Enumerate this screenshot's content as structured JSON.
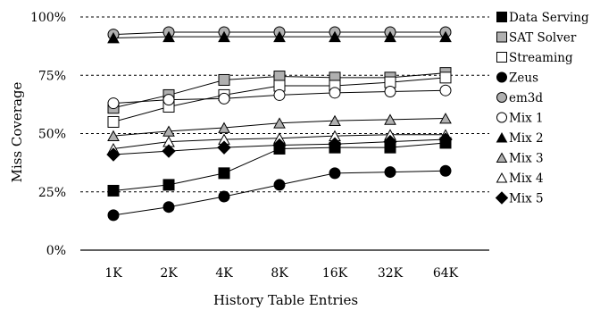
{
  "chart_data": {
    "type": "line",
    "title": "",
    "xlabel": "History Table Entries",
    "ylabel": "Miss Coverage",
    "categories": [
      "1K",
      "2K",
      "4K",
      "8K",
      "16K",
      "32K",
      "64K"
    ],
    "ylim": [
      0,
      100
    ],
    "yticks": [
      "0%",
      "25%",
      "50%",
      "75%",
      "100%"
    ],
    "ytick_values": [
      0,
      25,
      50,
      75,
      100
    ],
    "grid": "horizontal dashed at 25%, 50%, 75%, 100%",
    "legend_position": "right",
    "series": [
      {
        "name": "Data Serving",
        "marker": "square",
        "fill": "#000000",
        "values": [
          25.5,
          28,
          33,
          43.5,
          44,
          44,
          46
        ]
      },
      {
        "name": "SAT Solver",
        "marker": "square",
        "fill": "#b0b0b0",
        "values": [
          61,
          66.5,
          73,
          74.5,
          74,
          74,
          76
        ]
      },
      {
        "name": "Streaming",
        "marker": "square",
        "fill": "#ffffff",
        "values": [
          55,
          61.5,
          66.5,
          70.5,
          70.5,
          72,
          74
        ]
      },
      {
        "name": "Zeus",
        "marker": "circle",
        "fill": "#000000",
        "values": [
          15,
          18.5,
          23,
          28,
          33,
          33.5,
          34
        ]
      },
      {
        "name": "em3d",
        "marker": "circle",
        "fill": "#b0b0b0",
        "values": [
          92.5,
          93.5,
          93.5,
          93.5,
          93.5,
          93.5,
          93.5
        ]
      },
      {
        "name": "Mix 1",
        "marker": "circle",
        "fill": "#ffffff",
        "values": [
          63,
          64.5,
          65,
          66.5,
          67.5,
          68,
          68.5
        ]
      },
      {
        "name": "Mix 2",
        "marker": "triangle",
        "fill": "#000000",
        "values": [
          91,
          91.5,
          91.5,
          91.5,
          91.5,
          91.5,
          91.5
        ]
      },
      {
        "name": "Mix 3",
        "marker": "triangle",
        "fill": "#b0b0b0",
        "values": [
          49,
          51,
          52.5,
          54.5,
          55.5,
          56,
          56.5
        ]
      },
      {
        "name": "Mix 4",
        "marker": "triangle",
        "fill": "#ffffff",
        "values": [
          43.5,
          46.5,
          47.5,
          48,
          49,
          49.5,
          49.5
        ]
      },
      {
        "name": "Mix 5",
        "marker": "diamond",
        "fill": "#000000",
        "values": [
          41,
          42.5,
          44,
          45,
          45.5,
          46.5,
          47.5
        ]
      }
    ]
  }
}
